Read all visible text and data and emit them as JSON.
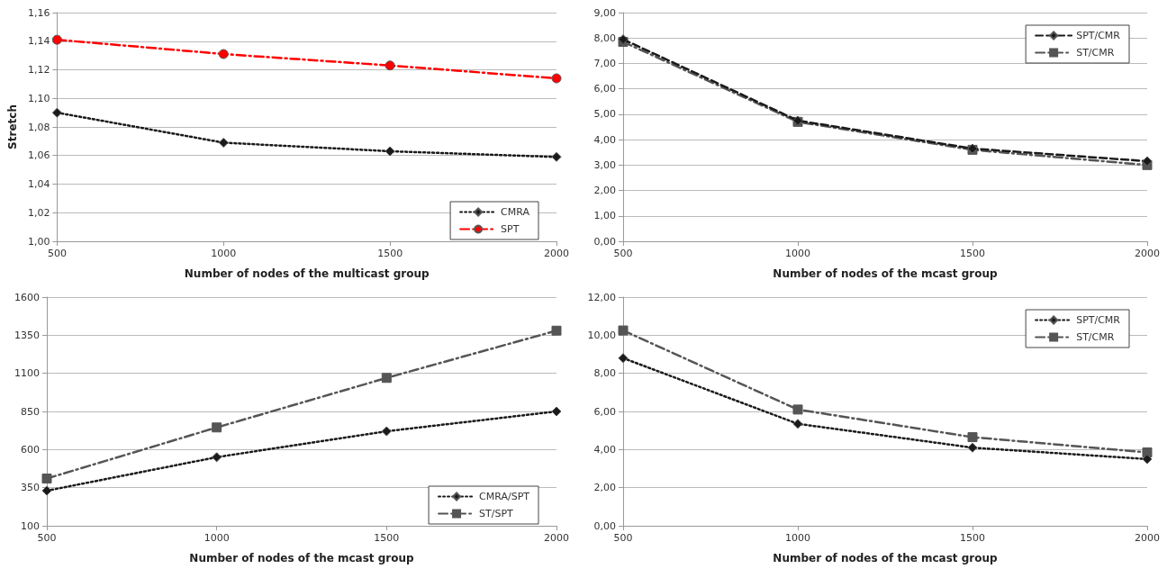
{
  "chart_data": [
    {
      "type": "line",
      "xlabel": "Number of nodes of the multicast group",
      "ylabel": "Stretch",
      "x": [
        500,
        1000,
        1500,
        2000
      ],
      "xlim": [
        500,
        2000
      ],
      "xticks": [
        500,
        1000,
        1500,
        2000
      ],
      "ylim": [
        1.0,
        1.16
      ],
      "yticks": [
        {
          "value": 1.0,
          "label": "1,00"
        },
        {
          "value": 1.02,
          "label": "1,02"
        },
        {
          "value": 1.04,
          "label": "1,04"
        },
        {
          "value": 1.06,
          "label": "1,06"
        },
        {
          "value": 1.08,
          "label": "1,08"
        },
        {
          "value": 1.1,
          "label": "1,10"
        },
        {
          "value": 1.12,
          "label": "1,12"
        },
        {
          "value": 1.14,
          "label": "1,14"
        },
        {
          "value": 1.16,
          "label": "1,16"
        }
      ],
      "grid": "y",
      "legend": "bottom right",
      "series": [
        {
          "name": "CMRA",
          "color": "#1a1a1a",
          "marker": "diamond",
          "line_style": "dotted",
          "values": [
            1.09,
            1.069,
            1.063,
            1.059
          ]
        },
        {
          "name": "SPT",
          "color": "#ff0000",
          "marker": "circle",
          "line_style": "dashdot",
          "values": [
            1.141,
            1.131,
            1.123,
            1.114
          ]
        }
      ]
    },
    {
      "type": "line",
      "xlabel": "Number of nodes of the mcast group",
      "x": [
        500,
        1000,
        1500,
        2000
      ],
      "xlim": [
        500,
        2000
      ],
      "xticks": [
        500,
        1000,
        1500,
        2000
      ],
      "ylim": [
        0,
        9
      ],
      "yticks": [
        {
          "value": 0,
          "label": "0,00"
        },
        {
          "value": 1,
          "label": "1,00"
        },
        {
          "value": 2,
          "label": "2,00"
        },
        {
          "value": 3,
          "label": "3,00"
        },
        {
          "value": 4,
          "label": "4,00"
        },
        {
          "value": 5,
          "label": "5,00"
        },
        {
          "value": 6,
          "label": "6,00"
        },
        {
          "value": 7,
          "label": "7,00"
        },
        {
          "value": 8,
          "label": "8,00"
        },
        {
          "value": 9,
          "label": "9,00"
        }
      ],
      "grid": "y",
      "legend": "top right",
      "series": [
        {
          "name": "SPT/CMR",
          "color": "#1a1a1a",
          "marker": "diamond",
          "line_style": "dashed",
          "values": [
            7.95,
            4.75,
            3.65,
            3.15
          ]
        },
        {
          "name": "ST/CMR",
          "color": "#555555",
          "marker": "square",
          "line_style": "dashdot",
          "values": [
            7.85,
            4.7,
            3.6,
            3.0
          ]
        }
      ]
    },
    {
      "type": "line",
      "xlabel": "Number of nodes of the mcast group",
      "x": [
        500,
        1000,
        1500,
        2000
      ],
      "xlim": [
        500,
        2000
      ],
      "xticks": [
        500,
        1000,
        1500,
        2000
      ],
      "ylim": [
        100,
        1600
      ],
      "yticks": [
        100,
        350,
        600,
        850,
        1100,
        1350,
        1600
      ],
      "grid": "y",
      "legend": "bottom right",
      "series": [
        {
          "name": "CMRA/SPT",
          "color": "#1a1a1a",
          "marker": "diamond",
          "line_style": "dotted",
          "values": [
            330,
            550,
            720,
            850
          ]
        },
        {
          "name": "ST/SPT",
          "color": "#555555",
          "marker": "square",
          "line_style": "dashdot",
          "values": [
            410,
            745,
            1070,
            1380
          ]
        }
      ]
    },
    {
      "type": "line",
      "xlabel": "Number of nodes of the mcast group",
      "x": [
        500,
        1000,
        1500,
        2000
      ],
      "xlim": [
        500,
        2000
      ],
      "xticks": [
        500,
        1000,
        1500,
        2000
      ],
      "ylim": [
        0,
        12
      ],
      "yticks": [
        {
          "value": 0,
          "label": "0,00"
        },
        {
          "value": 2,
          "label": "2,00"
        },
        {
          "value": 4,
          "label": "4,00"
        },
        {
          "value": 6,
          "label": "6,00"
        },
        {
          "value": 8,
          "label": "8,00"
        },
        {
          "value": 10,
          "label": "10,00"
        },
        {
          "value": 12,
          "label": "12,00"
        }
      ],
      "grid": "y",
      "legend": "top right",
      "series": [
        {
          "name": "SPT/CMR",
          "color": "#1a1a1a",
          "marker": "diamond",
          "line_style": "dotted",
          "values": [
            8.8,
            5.35,
            4.1,
            3.5
          ]
        },
        {
          "name": "ST/CMR",
          "color": "#555555",
          "marker": "square",
          "line_style": "dashdot",
          "values": [
            10.25,
            6.1,
            4.65,
            3.85
          ]
        }
      ]
    }
  ]
}
